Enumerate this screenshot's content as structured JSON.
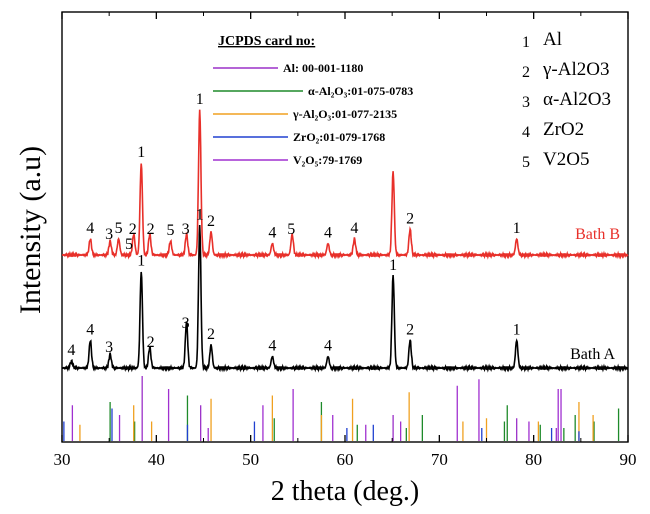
{
  "chart_data": {
    "type": "line",
    "xlabel": "2 theta (deg.)",
    "ylabel": "Intensity (a.u)",
    "xlim": [
      30,
      90
    ],
    "xticks": [
      30,
      40,
      50,
      60,
      70,
      80,
      90
    ],
    "series": [
      {
        "name": "Bath B",
        "color": "#e8302a",
        "baseline": 1.0,
        "peaks": [
          {
            "x": 33.0,
            "y": 0.07
          },
          {
            "x": 35.1,
            "y": 0.06
          },
          {
            "x": 36.0,
            "y": 0.07
          },
          {
            "x": 37.6,
            "y": 0.09
          },
          {
            "x": 38.4,
            "y": 0.4
          },
          {
            "x": 39.3,
            "y": 0.09
          },
          {
            "x": 41.5,
            "y": 0.06
          },
          {
            "x": 43.2,
            "y": 0.09
          },
          {
            "x": 44.6,
            "y": 0.63
          },
          {
            "x": 45.8,
            "y": 0.1
          },
          {
            "x": 52.3,
            "y": 0.05
          },
          {
            "x": 54.4,
            "y": 0.09
          },
          {
            "x": 58.2,
            "y": 0.05
          },
          {
            "x": 61.0,
            "y": 0.07
          },
          {
            "x": 65.1,
            "y": 0.36
          },
          {
            "x": 66.9,
            "y": 0.11
          },
          {
            "x": 78.2,
            "y": 0.07
          }
        ],
        "peak_labels": [
          {
            "x": 33.0,
            "text": "4"
          },
          {
            "x": 35.0,
            "text": "3"
          },
          {
            "x": 36.0,
            "text": "5"
          },
          {
            "x": 37.1,
            "text": "5"
          },
          {
            "x": 37.5,
            "text": "2"
          },
          {
            "x": 38.4,
            "text": "1"
          },
          {
            "x": 39.4,
            "text": "2"
          },
          {
            "x": 41.5,
            "text": "5"
          },
          {
            "x": 43.1,
            "text": "3"
          },
          {
            "x": 44.6,
            "text": "1"
          },
          {
            "x": 45.8,
            "text": "2"
          },
          {
            "x": 52.3,
            "text": "4"
          },
          {
            "x": 54.3,
            "text": "5"
          },
          {
            "x": 58.2,
            "text": "4"
          },
          {
            "x": 61.0,
            "text": "4"
          },
          {
            "x": 66.9,
            "text": "2"
          },
          {
            "x": 78.2,
            "text": "1"
          }
        ]
      },
      {
        "name": "Bath A",
        "color": "#000000",
        "baseline": 0.0,
        "peaks": [
          {
            "x": 31.0,
            "y": 0.03
          },
          {
            "x": 33.0,
            "y": 0.12
          },
          {
            "x": 35.1,
            "y": 0.06
          },
          {
            "x": 38.4,
            "y": 0.42
          },
          {
            "x": 39.3,
            "y": 0.09
          },
          {
            "x": 43.2,
            "y": 0.2
          },
          {
            "x": 44.6,
            "y": 0.62
          },
          {
            "x": 45.8,
            "y": 0.1
          },
          {
            "x": 52.3,
            "y": 0.05
          },
          {
            "x": 58.2,
            "y": 0.05
          },
          {
            "x": 65.1,
            "y": 0.4
          },
          {
            "x": 66.9,
            "y": 0.12
          },
          {
            "x": 78.2,
            "y": 0.12
          }
        ],
        "peak_labels": [
          {
            "x": 31.0,
            "text": "4"
          },
          {
            "x": 33.0,
            "text": "4"
          },
          {
            "x": 35.0,
            "text": "3"
          },
          {
            "x": 38.4,
            "text": "1"
          },
          {
            "x": 39.4,
            "text": "2"
          },
          {
            "x": 43.1,
            "text": "3"
          },
          {
            "x": 44.6,
            "text": "1"
          },
          {
            "x": 45.8,
            "text": "2"
          },
          {
            "x": 52.3,
            "text": "4"
          },
          {
            "x": 58.2,
            "text": "4"
          },
          {
            "x": 65.1,
            "text": "1"
          },
          {
            "x": 66.9,
            "text": "2"
          },
          {
            "x": 78.2,
            "text": "1"
          }
        ]
      }
    ],
    "reference_lines": [
      {
        "card": "Al",
        "color": "#9b30c8",
        "x": [
          38.5,
          44.7,
          65.1,
          78.2,
          82.4
        ],
        "h": [
          1.0,
          0.55,
          0.4,
          0.35,
          0.2
        ]
      },
      {
        "card": "alpha-Al2O3",
        "color": "#1e8a2a",
        "x": [
          35.1,
          37.7,
          43.3,
          52.5,
          57.5,
          61.3,
          66.5,
          68.2,
          76.9,
          77.2,
          80.7,
          83.2,
          84.4,
          86.4,
          89.0
        ],
        "h": [
          0.6,
          0.3,
          0.7,
          0.35,
          0.6,
          0.25,
          0.2,
          0.4,
          0.3,
          0.55,
          0.25,
          0.2,
          0.4,
          0.3,
          0.5
        ]
      },
      {
        "card": "gamma-Al2O3",
        "color": "#f0a020",
        "x": [
          31.9,
          37.6,
          39.5,
          45.8,
          52.3,
          57.5,
          60.8,
          66.8,
          72.5,
          75.0,
          80.5,
          84.8,
          86.3
        ],
        "h": [
          0.25,
          0.55,
          0.3,
          0.65,
          0.7,
          0.4,
          0.65,
          0.75,
          0.3,
          0.35,
          0.3,
          0.6,
          0.4
        ]
      },
      {
        "card": "ZrO2",
        "color": "#2040d0",
        "x": [
          30.2,
          35.3,
          43.3,
          50.4,
          60.2,
          63.0,
          74.5,
          81.9,
          84.8
        ],
        "h": [
          0.3,
          0.5,
          0.25,
          0.3,
          0.2,
          0.25,
          0.2,
          0.2,
          0.15
        ]
      },
      {
        "card": "V2O5",
        "color": "#a030d0",
        "x": [
          31.1,
          36.1,
          41.3,
          45.5,
          51.3,
          54.5,
          58.7,
          62.2,
          65.9,
          71.9,
          74.2,
          79.5,
          82.6,
          82.9
        ],
        "h": [
          0.55,
          0.4,
          0.8,
          0.2,
          0.55,
          0.8,
          0.4,
          0.25,
          0.3,
          0.85,
          0.95,
          0.3,
          0.8,
          0.8
        ]
      }
    ],
    "legend_title": "JCPDS card no:",
    "legend_entries": [
      {
        "color": "#9b30c8",
        "label": "Al: 00-001-1180"
      },
      {
        "color": "#1e8a2a",
        "label": "α-Al₂O₃:01-075-0783"
      },
      {
        "color": "#f0a020",
        "label": "γ-Al₂O₃:01-077-2135"
      },
      {
        "color": "#2040d0",
        "label": "ZrO₂:01-079-1768"
      },
      {
        "color": "#a030d0",
        "label": "V₂O₅:79-1769"
      }
    ],
    "phase_key": [
      {
        "num": "1",
        "label": "Al"
      },
      {
        "num": "2",
        "label": "γ-Al2O3"
      },
      {
        "num": "3",
        "label": "α-Al2O3"
      },
      {
        "num": "4",
        "label": "ZrO2"
      },
      {
        "num": "5",
        "label": "V2O5"
      }
    ]
  }
}
